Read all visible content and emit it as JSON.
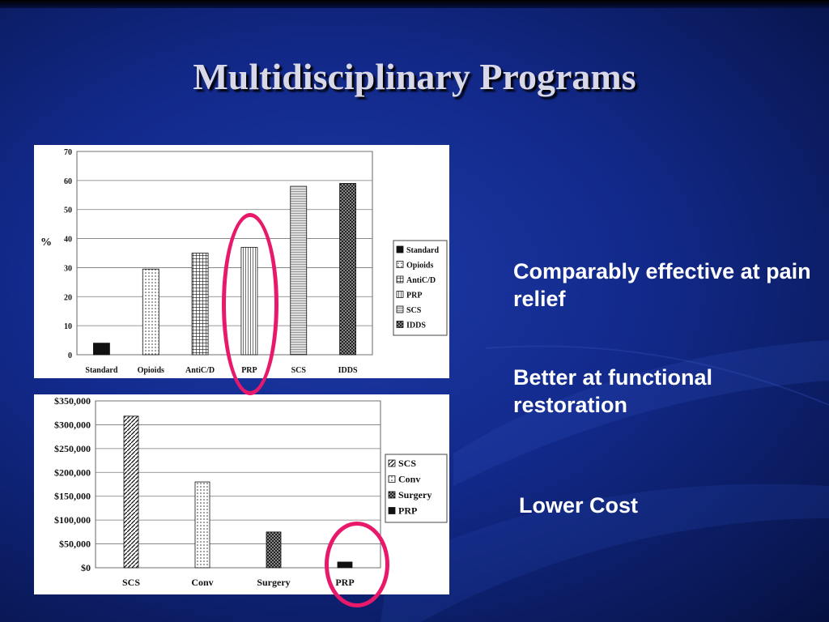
{
  "slide": {
    "title": "Multidisciplinary Programs",
    "bullets": [
      "Comparably effective at pain relief",
      "Better at functional restoration",
      "Lower Cost"
    ],
    "colors": {
      "background": "#12298a",
      "title": "#d8d8e8",
      "highlight_ring": "#e8196b"
    }
  },
  "chart_data": [
    {
      "type": "bar",
      "ylabel": "%",
      "ylim": [
        0,
        70
      ],
      "yticks": [
        "0",
        "10",
        "20",
        "30",
        "40",
        "50",
        "60",
        "70"
      ],
      "categories": [
        "Standard",
        "Opioids",
        "AntiC/D",
        "PRP",
        "SCS",
        "IDDS"
      ],
      "values": [
        4,
        29.5,
        35,
        37,
        58,
        59
      ],
      "patterns": [
        "solid",
        "dots",
        "grid",
        "vlines",
        "fine",
        "checker"
      ],
      "legend": [
        "Standard",
        "Opioids",
        "AntiC/D",
        "PRP",
        "SCS",
        "IDDS"
      ],
      "legend_position": "right",
      "grid": true,
      "highlighted_category": "PRP"
    },
    {
      "type": "bar",
      "ylim": [
        0,
        350000
      ],
      "yticks": [
        "$0",
        "$50,000",
        "$100,000",
        "$150,000",
        "$200,000",
        "$250,000",
        "$300,000",
        "$350,000"
      ],
      "categories": [
        "SCS",
        "Conv",
        "Surgery",
        "PRP"
      ],
      "values": [
        318000,
        180000,
        75000,
        12000
      ],
      "patterns": [
        "diag",
        "dots",
        "checker",
        "solid"
      ],
      "legend": [
        "SCS",
        "Conv",
        "Surgery",
        "PRP"
      ],
      "legend_position": "right",
      "grid": true,
      "highlighted_category": "PRP"
    }
  ]
}
